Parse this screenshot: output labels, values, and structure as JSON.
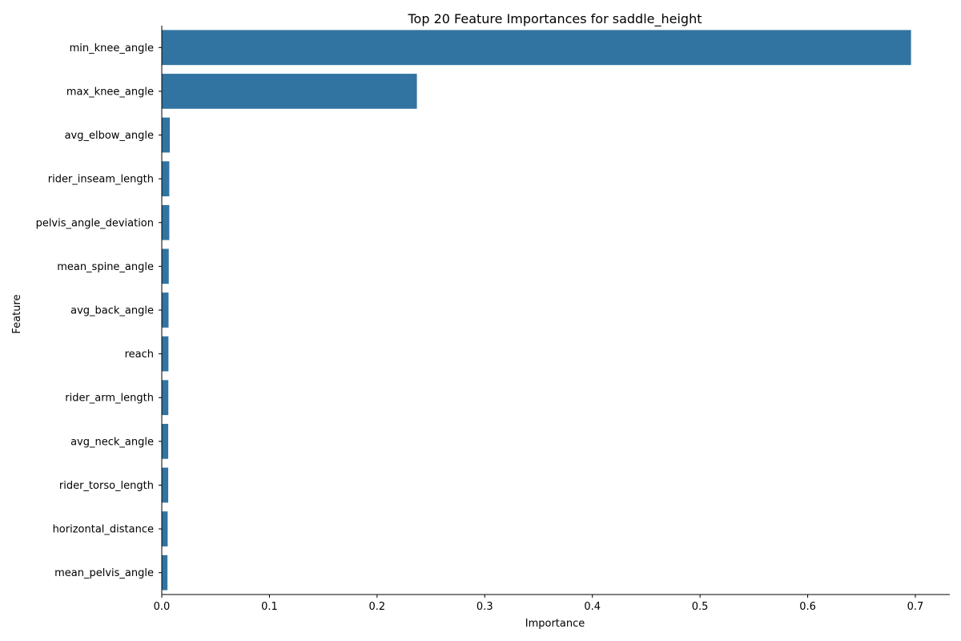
{
  "chart_data": {
    "type": "bar",
    "orientation": "horizontal",
    "title": "Top 20 Feature Importances for saddle_height",
    "xlabel": "Importance",
    "ylabel": "Feature",
    "categories": [
      "min_knee_angle",
      "max_knee_angle",
      "avg_elbow_angle",
      "rider_inseam_length",
      "pelvis_angle_deviation",
      "mean_spine_angle",
      "avg_back_angle",
      "reach",
      "rider_arm_length",
      "avg_neck_angle",
      "rider_torso_length",
      "horizontal_distance",
      "mean_pelvis_angle"
    ],
    "values": [
      0.696,
      0.237,
      0.0075,
      0.007,
      0.007,
      0.0065,
      0.0063,
      0.0062,
      0.0061,
      0.006,
      0.006,
      0.0055,
      0.0053
    ],
    "xlim": [
      0,
      0.732
    ],
    "xticks": [
      0.0,
      0.1,
      0.2,
      0.3,
      0.4,
      0.5,
      0.6,
      0.7
    ],
    "xtick_labels": [
      "0.0",
      "0.1",
      "0.2",
      "0.3",
      "0.4",
      "0.5",
      "0.6",
      "0.7"
    ],
    "bar_color": "#3274a1",
    "grid": false,
    "legend": "none"
  }
}
